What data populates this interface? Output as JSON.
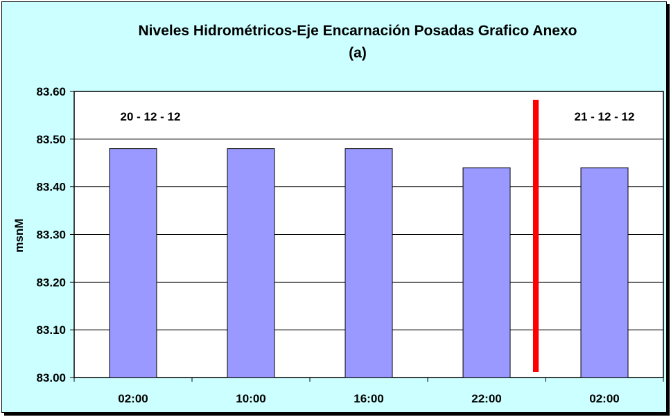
{
  "chart_data": {
    "type": "bar",
    "title": "Niveles Hidrométricos-Eje Encarnación Posadas Grafico Anexo",
    "subtitle": "(a)",
    "xlabel": "",
    "ylabel": "msnM",
    "categories": [
      "02:00",
      "10:00",
      "16:00",
      "22:00",
      "02:00"
    ],
    "values": [
      83.48,
      83.48,
      83.48,
      83.44,
      83.44
    ],
    "ylim": [
      83.0,
      83.6
    ],
    "y_ticks": [
      "83.00",
      "83.10",
      "83.20",
      "83.30",
      "83.40",
      "83.50",
      "83.60"
    ],
    "grid": true,
    "bar_color": "#9999ff",
    "plot_background": "#ffffff",
    "chart_background": "#ccffff",
    "annotations": [
      {
        "text": "20 - 12 - 12"
      },
      {
        "text": "21 - 12 - 12"
      }
    ],
    "date_separator": {
      "after_category_index": 3,
      "color": "#ff0000"
    }
  }
}
